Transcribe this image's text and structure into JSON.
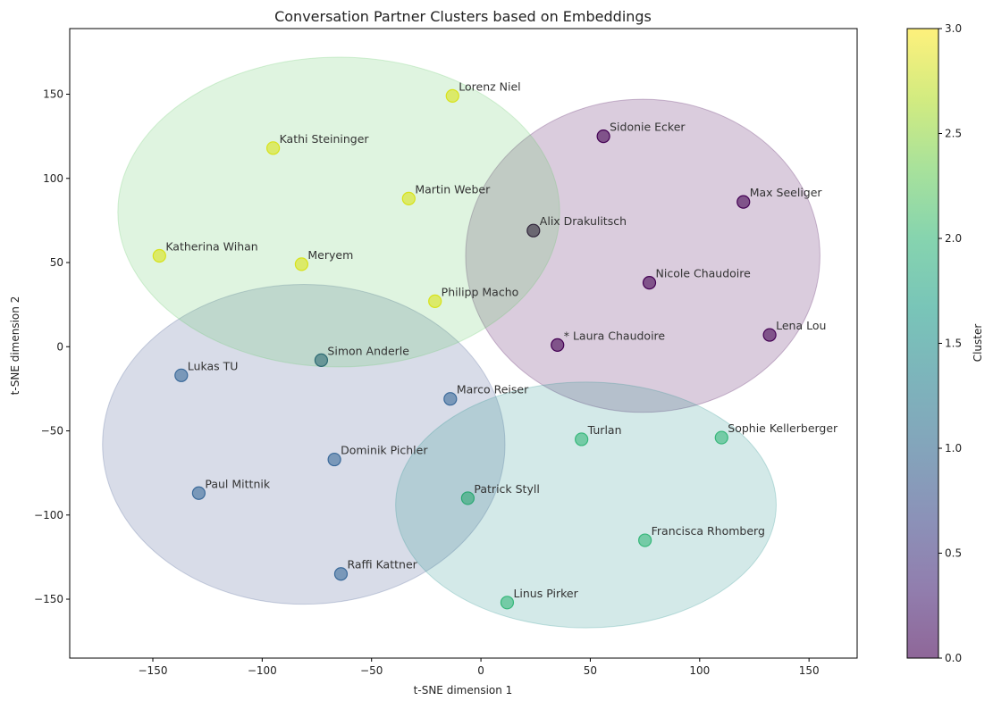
{
  "chart_data": {
    "type": "scatter",
    "title": "Conversation Partner Clusters based on Embeddings",
    "xlabel": "t-SNE dimension 1",
    "ylabel": "t-SNE dimension 2",
    "xlim": [
      -188,
      172
    ],
    "ylim": [
      -185,
      189
    ],
    "xticks": [
      -150,
      -100,
      -50,
      0,
      50,
      100,
      150
    ],
    "yticks": [
      -150,
      -100,
      -50,
      0,
      50,
      100,
      150
    ],
    "xtick_labels": [
      "−150",
      "−100",
      "−50",
      "0",
      "50",
      "100",
      "150"
    ],
    "ytick_labels": [
      "−150",
      "−100",
      "−50",
      "0",
      "50",
      "100",
      "150"
    ],
    "grid": false,
    "clusters": [
      {
        "cluster": 0,
        "color": "#440154",
        "ellipse": {
          "cx": 74,
          "cy": 54,
          "rx": 81,
          "ry": 93
        }
      },
      {
        "cluster": 1,
        "color": "#3b528b",
        "ellipse": {
          "cx": -81,
          "cy": -58,
          "rx": 92,
          "ry": 95
        }
      },
      {
        "cluster": 2,
        "color": "#21918c",
        "ellipse": {
          "cx": 48,
          "cy": -94,
          "rx": 87,
          "ry": 73
        }
      },
      {
        "cluster": 3,
        "color": "#5ec962",
        "ellipse": {
          "cx": -65,
          "cy": 80,
          "rx": 101,
          "ry": 92
        }
      }
    ],
    "points": [
      {
        "name": "Lorenz Niel",
        "x": -13,
        "y": 149,
        "cluster": 3,
        "color": "#d8e219"
      },
      {
        "name": "Kathi Steininger",
        "x": -95,
        "y": 118,
        "cluster": 3,
        "color": "#d8e219"
      },
      {
        "name": "Martin Weber",
        "x": -33,
        "y": 88,
        "cluster": 3,
        "color": "#d8e219"
      },
      {
        "name": "Katherina Wihan",
        "x": -147,
        "y": 54,
        "cluster": 3,
        "color": "#d8e219"
      },
      {
        "name": "Meryem",
        "x": -82,
        "y": 49,
        "cluster": 3,
        "color": "#d8e219"
      },
      {
        "name": "Philipp Macho",
        "x": -21,
        "y": 27,
        "cluster": 3,
        "color": "#d8e219"
      },
      {
        "name": "Sidonie Ecker",
        "x": 56,
        "y": 125,
        "cluster": 0,
        "color": "#440154"
      },
      {
        "name": "Max Seeliger",
        "x": 120,
        "y": 86,
        "cluster": 0,
        "color": "#440154"
      },
      {
        "name": "Alix Drakulitsch",
        "x": 24,
        "y": 69,
        "cluster": 0,
        "color": "#30243a"
      },
      {
        "name": "Nicole Chaudoire",
        "x": 77,
        "y": 38,
        "cluster": 0,
        "color": "#440154"
      },
      {
        "name": "* Laura Chaudoire",
        "x": 35,
        "y": 1,
        "cluster": 0,
        "color": "#440154"
      },
      {
        "name": "Lena Lou",
        "x": 132,
        "y": 7,
        "cluster": 0,
        "color": "#440154"
      },
      {
        "name": "Simon Anderle",
        "x": -73,
        "y": -8,
        "cluster": 1,
        "color": "#2e6b73"
      },
      {
        "name": "Lukas TU",
        "x": -137,
        "y": -17,
        "cluster": 1,
        "color": "#3b6a9a"
      },
      {
        "name": "Marco Reiser",
        "x": -14,
        "y": -31,
        "cluster": 1,
        "color": "#3b6a9a"
      },
      {
        "name": "Dominik Pichler",
        "x": -67,
        "y": -67,
        "cluster": 1,
        "color": "#3b6a9a"
      },
      {
        "name": "Paul Mittnik",
        "x": -129,
        "y": -87,
        "cluster": 1,
        "color": "#3b6a9a"
      },
      {
        "name": "Raffi Kattner",
        "x": -64,
        "y": -135,
        "cluster": 1,
        "color": "#3b6a9a"
      },
      {
        "name": "Turlan",
        "x": 46,
        "y": -55,
        "cluster": 2,
        "color": "#35b779"
      },
      {
        "name": "Sophie Kellerberger",
        "x": 110,
        "y": -54,
        "cluster": 2,
        "color": "#35b779"
      },
      {
        "name": "Patrick Styll",
        "x": -6,
        "y": -90,
        "cluster": 2,
        "color": "#2aa772"
      },
      {
        "name": "Francisca Rhomberg",
        "x": 75,
        "y": -115,
        "cluster": 2,
        "color": "#35b779"
      },
      {
        "name": "Linus Pirker",
        "x": 12,
        "y": -152,
        "cluster": 2,
        "color": "#35b779"
      }
    ],
    "colorbar": {
      "label": "Cluster",
      "range": [
        0,
        3
      ],
      "ticks": [
        0,
        0.5,
        1.0,
        1.5,
        2.0,
        2.5,
        3.0
      ],
      "tick_labels": [
        "0.0",
        "0.5",
        "1.0",
        "1.5",
        "2.0",
        "2.5",
        "3.0"
      ],
      "colormap": [
        "#440154",
        "#482878",
        "#3e4989",
        "#31688e",
        "#26828e",
        "#1f9e89",
        "#35b779",
        "#6ece58",
        "#b5de2b",
        "#fde725"
      ]
    }
  }
}
